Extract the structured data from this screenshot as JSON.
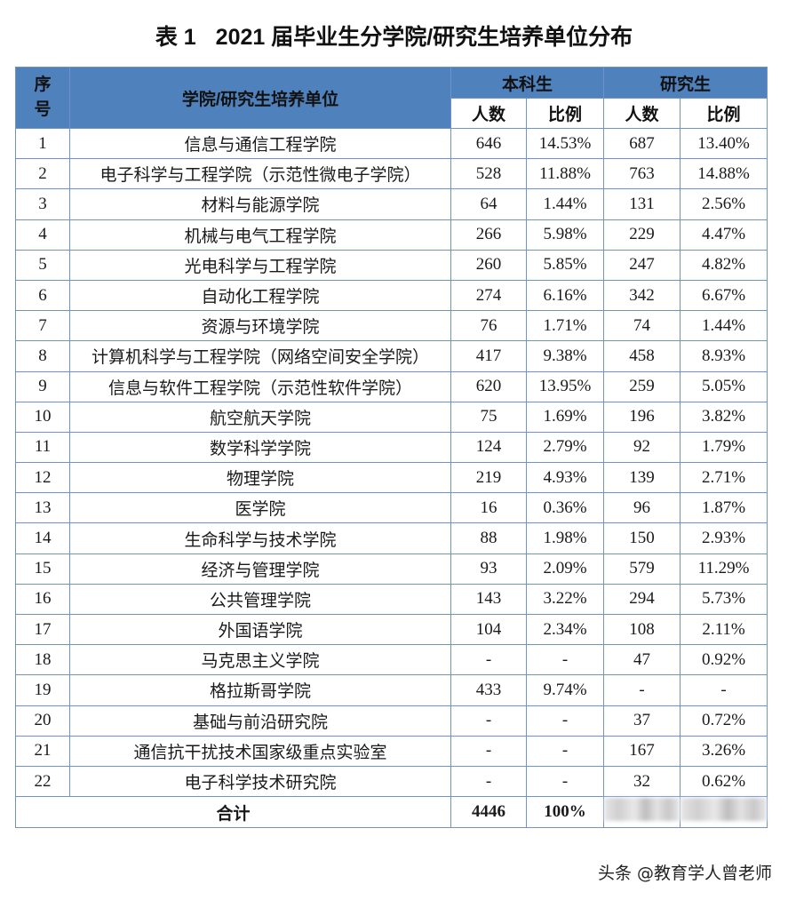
{
  "title": {
    "label": "表 1",
    "text": "2021 届毕业生分学院/研究生培养单位分布"
  },
  "table": {
    "header": {
      "seq": "序号",
      "unit": "学院/研究生培养单位",
      "undergrad": "本科生",
      "graduate": "研究生",
      "count": "人数",
      "ratio": "比例"
    },
    "rows": [
      {
        "seq": "1",
        "name": "信息与通信工程学院",
        "ug_count": "646",
        "ug_ratio": "14.53%",
        "gr_count": "687",
        "gr_ratio": "13.40%"
      },
      {
        "seq": "2",
        "name": "电子科学与工程学院（示范性微电子学院）",
        "ug_count": "528",
        "ug_ratio": "11.88%",
        "gr_count": "763",
        "gr_ratio": "14.88%"
      },
      {
        "seq": "3",
        "name": "材料与能源学院",
        "ug_count": "64",
        "ug_ratio": "1.44%",
        "gr_count": "131",
        "gr_ratio": "2.56%"
      },
      {
        "seq": "4",
        "name": "机械与电气工程学院",
        "ug_count": "266",
        "ug_ratio": "5.98%",
        "gr_count": "229",
        "gr_ratio": "4.47%"
      },
      {
        "seq": "5",
        "name": "光电科学与工程学院",
        "ug_count": "260",
        "ug_ratio": "5.85%",
        "gr_count": "247",
        "gr_ratio": "4.82%"
      },
      {
        "seq": "6",
        "name": "自动化工程学院",
        "ug_count": "274",
        "ug_ratio": "6.16%",
        "gr_count": "342",
        "gr_ratio": "6.67%"
      },
      {
        "seq": "7",
        "name": "资源与环境学院",
        "ug_count": "76",
        "ug_ratio": "1.71%",
        "gr_count": "74",
        "gr_ratio": "1.44%"
      },
      {
        "seq": "8",
        "name": "计算机科学与工程学院（网络空间安全学院）",
        "ug_count": "417",
        "ug_ratio": "9.38%",
        "gr_count": "458",
        "gr_ratio": "8.93%"
      },
      {
        "seq": "9",
        "name": "信息与软件工程学院（示范性软件学院）",
        "ug_count": "620",
        "ug_ratio": "13.95%",
        "gr_count": "259",
        "gr_ratio": "5.05%"
      },
      {
        "seq": "10",
        "name": "航空航天学院",
        "ug_count": "75",
        "ug_ratio": "1.69%",
        "gr_count": "196",
        "gr_ratio": "3.82%"
      },
      {
        "seq": "11",
        "name": "数学科学学院",
        "ug_count": "124",
        "ug_ratio": "2.79%",
        "gr_count": "92",
        "gr_ratio": "1.79%"
      },
      {
        "seq": "12",
        "name": "物理学院",
        "ug_count": "219",
        "ug_ratio": "4.93%",
        "gr_count": "139",
        "gr_ratio": "2.71%"
      },
      {
        "seq": "13",
        "name": "医学院",
        "ug_count": "16",
        "ug_ratio": "0.36%",
        "gr_count": "96",
        "gr_ratio": "1.87%"
      },
      {
        "seq": "14",
        "name": "生命科学与技术学院",
        "ug_count": "88",
        "ug_ratio": "1.98%",
        "gr_count": "150",
        "gr_ratio": "2.93%"
      },
      {
        "seq": "15",
        "name": "经济与管理学院",
        "ug_count": "93",
        "ug_ratio": "2.09%",
        "gr_count": "579",
        "gr_ratio": "11.29%"
      },
      {
        "seq": "16",
        "name": "公共管理学院",
        "ug_count": "143",
        "ug_ratio": "3.22%",
        "gr_count": "294",
        "gr_ratio": "5.73%"
      },
      {
        "seq": "17",
        "name": "外国语学院",
        "ug_count": "104",
        "ug_ratio": "2.34%",
        "gr_count": "108",
        "gr_ratio": "2.11%"
      },
      {
        "seq": "18",
        "name": "马克思主义学院",
        "ug_count": "-",
        "ug_ratio": "-",
        "gr_count": "47",
        "gr_ratio": "0.92%"
      },
      {
        "seq": "19",
        "name": "格拉斯哥学院",
        "ug_count": "433",
        "ug_ratio": "9.74%",
        "gr_count": "-",
        "gr_ratio": "-"
      },
      {
        "seq": "20",
        "name": "基础与前沿研究院",
        "ug_count": "-",
        "ug_ratio": "-",
        "gr_count": "37",
        "gr_ratio": "0.72%"
      },
      {
        "seq": "21",
        "name": "通信抗干扰技术国家级重点实验室",
        "ug_count": "-",
        "ug_ratio": "-",
        "gr_count": "167",
        "gr_ratio": "3.26%"
      },
      {
        "seq": "22",
        "name": "电子科学技术研究院",
        "ug_count": "-",
        "ug_ratio": "-",
        "gr_count": "32",
        "gr_ratio": "0.62%"
      }
    ],
    "total": {
      "label": "合计",
      "ug_count": "4446",
      "ug_ratio": "100%"
    }
  },
  "colors": {
    "header_bg": "#4f81bd",
    "border": "#6f93c9"
  },
  "watermark": "头条 @教育学人曾老师"
}
